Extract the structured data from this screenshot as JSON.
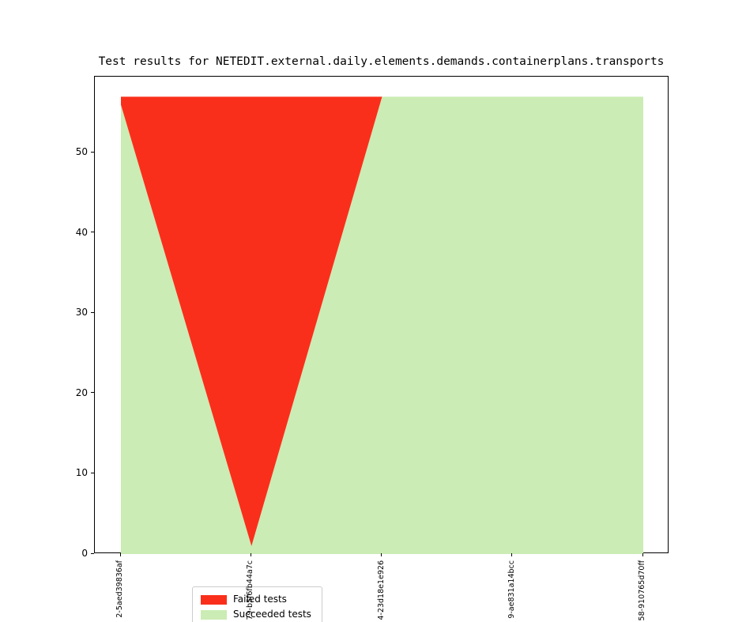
{
  "title": "Test results for NETEDIT.external.daily.elements.demands.containerplans.transports",
  "legend": {
    "items": [
      {
        "label": "Failed tests",
        "color": "#fa2f1b"
      },
      {
        "label": "Succeeded tests",
        "color": "#cbecb4"
      }
    ]
  },
  "colors": {
    "failed": "#fa2f1b",
    "succeeded": "#cbecb4",
    "axis": "#000000",
    "legend_border": "#cccccc"
  },
  "chart_data": {
    "type": "area",
    "stacked": true,
    "title": "Test results for NETEDIT.external.daily.elements.demands.containerplans.transports",
    "categories": [
      "2-5aed39836af",
      "79-b5f6fb44a7c",
      "4-23d18e1e926",
      "9-ae831a14bcc",
      "58-910765d70ff"
    ],
    "series": [
      {
        "name": "Succeeded tests",
        "color": "#cbecb4",
        "values": [
          56,
          1,
          57,
          57,
          57
        ]
      },
      {
        "name": "Failed tests",
        "color": "#fa2f1b",
        "values": [
          1,
          56,
          0,
          0,
          0
        ]
      }
    ],
    "total_per_category": [
      57,
      57,
      57,
      57,
      57
    ],
    "xlabel": "",
    "ylabel": "",
    "yticks": [
      0,
      10,
      20,
      30,
      40,
      50
    ],
    "ylim": [
      0,
      59.5
    ],
    "grid": false,
    "legend_position": "lower left",
    "xtick_rotation": 90
  }
}
